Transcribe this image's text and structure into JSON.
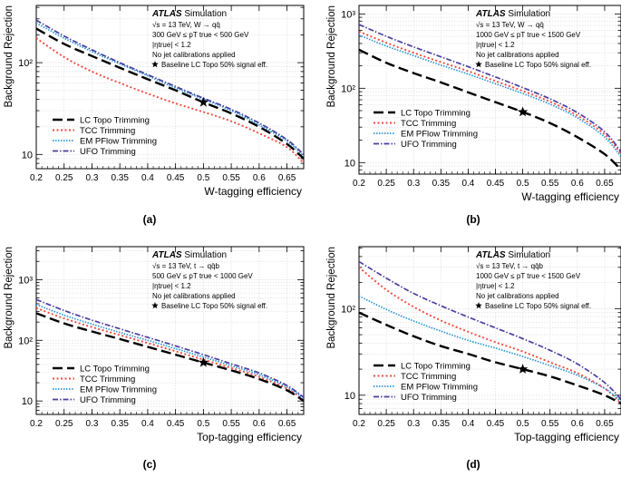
{
  "legend_labels": {
    "lc": "LC Topo Trimming",
    "tcc": "TCC Trimming",
    "em": "EM PFlow Trimming",
    "ufo": "UFO Trimming"
  },
  "series_colors": {
    "lc": "#000000",
    "tcc": "#f04a3c",
    "em": "#2a96d6",
    "ufo": "#4b3fa0"
  },
  "chart_data": [
    {
      "type": "line",
      "panel_label": "(a)",
      "ylabel": "Background Rejection",
      "xlabel": "W-tagging efficiency",
      "xlim": [
        0.2,
        0.68
      ],
      "ylim": [
        7,
        420
      ],
      "yscale": "log",
      "xticks": [
        "0.2",
        "0.25",
        "0.3",
        "0.35",
        "0.4",
        "0.45",
        "0.5",
        "0.55",
        "0.6",
        "0.65"
      ],
      "yticks": [
        "10",
        "10²"
      ],
      "info": {
        "experiment": "ATLAS",
        "status": "Simulation",
        "line1": "√s = 13 TeV, W → qq̄",
        "line2": "300 GeV ≤ pT true < 500 GeV",
        "line3": "|ηtrue| < 1.2",
        "line4": "No jet calibrations applied",
        "line5": "Baseline LC Topo 50% signal eff."
      },
      "baseline_point": {
        "x": 0.5,
        "y": 37
      },
      "x": [
        0.2,
        0.25,
        0.3,
        0.35,
        0.4,
        0.45,
        0.5,
        0.55,
        0.6,
        0.65,
        0.68
      ],
      "series": [
        {
          "key": "lc",
          "name": "LC Topo Trimming",
          "values": [
            235,
            160,
            118,
            88,
            66,
            50,
            37,
            28,
            20,
            13,
            9
          ]
        },
        {
          "key": "tcc",
          "name": "TCC Trimming",
          "values": [
            185,
            115,
            80,
            60,
            46,
            36,
            29,
            23,
            17,
            12,
            8
          ]
        },
        {
          "key": "em",
          "name": "EM PFlow Trimming",
          "values": [
            270,
            185,
            132,
            97,
            72,
            53,
            40,
            30,
            21,
            14,
            9.5
          ]
        },
        {
          "key": "ufo",
          "name": "UFO Trimming",
          "values": [
            290,
            195,
            138,
            100,
            74,
            55,
            41,
            31,
            22,
            14.5,
            10
          ]
        }
      ]
    },
    {
      "type": "line",
      "panel_label": "(b)",
      "ylabel": "Background Rejection",
      "xlabel": "W-tagging efficiency",
      "xlim": [
        0.2,
        0.68
      ],
      "ylim": [
        7,
        1300
      ],
      "yscale": "log",
      "xticks": [
        "0.2",
        "0.25",
        "0.3",
        "0.35",
        "0.4",
        "0.45",
        "0.5",
        "0.55",
        "0.6",
        "0.65"
      ],
      "yticks": [
        "10",
        "10²",
        "10³"
      ],
      "info": {
        "experiment": "ATLAS",
        "status": "Simulation",
        "line1": "√s = 13 TeV, W → qq̄",
        "line2": "1000 GeV ≤ pT true < 1500 GeV",
        "line3": "|ηtrue| < 1.2",
        "line4": "No jet calibrations applied",
        "line5": "Baseline LC Topo 50% signal eff."
      },
      "baseline_point": {
        "x": 0.5,
        "y": 48
      },
      "x": [
        0.2,
        0.25,
        0.3,
        0.35,
        0.4,
        0.45,
        0.5,
        0.55,
        0.6,
        0.65,
        0.68
      ],
      "series": [
        {
          "key": "lc",
          "name": "LC Topo Trimming",
          "values": [
            330,
            220,
            160,
            120,
            88,
            65,
            48,
            34,
            22,
            13,
            8
          ]
        },
        {
          "key": "tcc",
          "name": "TCC Trimming",
          "values": [
            580,
            410,
            300,
            225,
            170,
            125,
            92,
            66,
            43,
            24,
            13
          ]
        },
        {
          "key": "em",
          "name": "EM PFlow Trimming",
          "values": [
            520,
            370,
            275,
            205,
            155,
            115,
            85,
            61,
            40,
            22,
            12
          ]
        },
        {
          "key": "ufo",
          "name": "UFO Trimming",
          "values": [
            720,
            500,
            360,
            265,
            195,
            142,
            102,
            72,
            47,
            26,
            14
          ]
        }
      ]
    },
    {
      "type": "line",
      "panel_label": "(c)",
      "ylabel": "Background Rejection",
      "xlabel": "Top-tagging efficiency",
      "xlim": [
        0.2,
        0.68
      ],
      "ylim": [
        6,
        3500
      ],
      "yscale": "log",
      "xticks": [
        "0.2",
        "0.25",
        "0.3",
        "0.35",
        "0.4",
        "0.45",
        "0.5",
        "0.55",
        "0.6",
        "0.65"
      ],
      "yticks": [
        "10",
        "10²",
        "10³"
      ],
      "info": {
        "experiment": "ATLAS",
        "status": "Simulation",
        "line1": "√s = 13 TeV, t → qq̄b",
        "line2": "500 GeV ≤ pT true < 1000 GeV",
        "line3": "|ηtrue| < 1.2",
        "line4": "No jet calibrations applied",
        "line5": "Baseline LC Topo 50% signal eff."
      },
      "baseline_point": {
        "x": 0.5,
        "y": 43
      },
      "x": [
        0.2,
        0.25,
        0.3,
        0.35,
        0.4,
        0.45,
        0.5,
        0.55,
        0.6,
        0.65,
        0.68
      ],
      "series": [
        {
          "key": "lc",
          "name": "LC Topo Trimming",
          "values": [
            280,
            190,
            140,
            105,
            78,
            58,
            43,
            32,
            23,
            15,
            10
          ]
        },
        {
          "key": "tcc",
          "name": "TCC Trimming",
          "values": [
            340,
            230,
            165,
            122,
            90,
            66,
            48,
            35,
            25,
            16,
            10.5
          ]
        },
        {
          "key": "em",
          "name": "EM PFlow Trimming",
          "values": [
            390,
            260,
            185,
            135,
            100,
            73,
            53,
            38,
            27,
            17,
            11
          ]
        },
        {
          "key": "ufo",
          "name": "UFO Trimming",
          "values": [
            470,
            310,
            215,
            155,
            112,
            81,
            58,
            41,
            29,
            18,
            11.5
          ]
        }
      ]
    },
    {
      "type": "line",
      "panel_label": "(d)",
      "ylabel": "Background Rejection",
      "xlabel": "Top-tagging efficiency",
      "xlim": [
        0.2,
        0.68
      ],
      "ylim": [
        6,
        520
      ],
      "yscale": "log",
      "xticks": [
        "0.2",
        "0.25",
        "0.3",
        "0.35",
        "0.4",
        "0.45",
        "0.5",
        "0.55",
        "0.6",
        "0.65"
      ],
      "yticks": [
        "10",
        "10²"
      ],
      "info": {
        "experiment": "ATLAS",
        "status": "Simulation",
        "line1": "√s = 13 TeV, t → qq̄b",
        "line2": "1000 GeV ≤ pT true < 1500 GeV",
        "line3": "|ηtrue| < 1.2",
        "line4": "No jet calibrations applied",
        "line5": "Baseline LC Topo 50% signal eff."
      },
      "baseline_point": {
        "x": 0.5,
        "y": 20
      },
      "x": [
        0.2,
        0.25,
        0.3,
        0.35,
        0.4,
        0.45,
        0.5,
        0.55,
        0.6,
        0.65,
        0.68
      ],
      "series": [
        {
          "key": "lc",
          "name": "LC Topo Trimming",
          "values": [
            90,
            65,
            48,
            37,
            30,
            24,
            20,
            16.5,
            13,
            10,
            8
          ]
        },
        {
          "key": "tcc",
          "name": "TCC Trimming",
          "values": [
            300,
            165,
            105,
            73,
            54,
            41,
            32,
            24,
            18,
            12,
            8
          ]
        },
        {
          "key": "em",
          "name": "EM PFlow Trimming",
          "values": [
            140,
            98,
            72,
            55,
            43,
            35,
            28,
            22,
            17,
            12,
            8.5
          ]
        },
        {
          "key": "ufo",
          "name": "UFO Trimming",
          "values": [
            350,
            225,
            150,
            108,
            80,
            60,
            45,
            33,
            23,
            14,
            9
          ]
        }
      ]
    }
  ]
}
